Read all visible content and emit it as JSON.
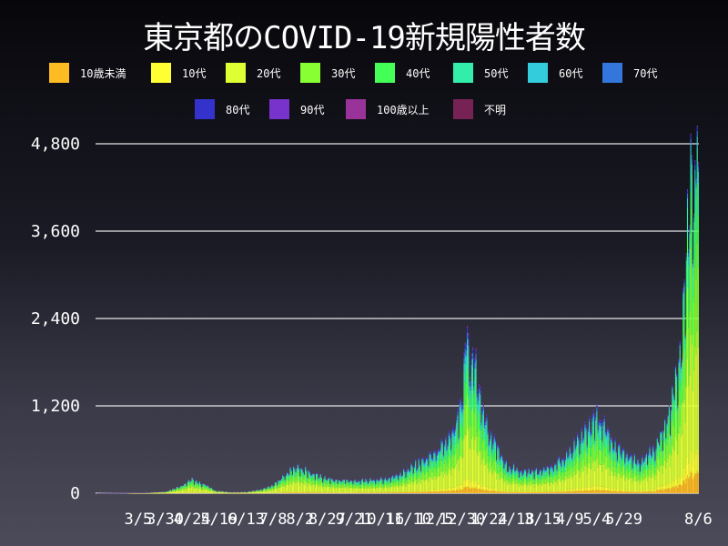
{
  "chart_data": {
    "type": "bar",
    "stacked": true,
    "title": "東京都のCOVID-19新規陽性者数",
    "xlabel": "",
    "ylabel": "",
    "ylim": [
      0,
      4900
    ],
    "grid": true,
    "legend_position": "top",
    "y_ticks": [
      "0",
      "1,200",
      "2,400",
      "3,600",
      "4,800"
    ],
    "y_tick_values": [
      0,
      1200,
      2400,
      3600,
      4800
    ],
    "x_tick_labels": [
      {
        "label": "3/5",
        "index": 39
      },
      {
        "label": "3/30",
        "index": 64
      },
      {
        "label": "4/24",
        "index": 89
      },
      {
        "label": "5/19",
        "index": 114
      },
      {
        "label": "6/13",
        "index": 139
      },
      {
        "label": "7/8",
        "index": 164
      },
      {
        "label": "8/2",
        "index": 189
      },
      {
        "label": "8/27",
        "index": 214
      },
      {
        "label": "9/21",
        "index": 239
      },
      {
        "label": "10/16",
        "index": 264
      },
      {
        "label": "11/10",
        "index": 289
      },
      {
        "label": "12/5",
        "index": 314
      },
      {
        "label": "12/30",
        "index": 339
      },
      {
        "label": "1/24",
        "index": 364
      },
      {
        "label": "2/18",
        "index": 389
      },
      {
        "label": "3/15",
        "index": 414
      },
      {
        "label": "4/9",
        "index": 439
      },
      {
        "label": "5/4",
        "index": 464
      },
      {
        "label": "5/29",
        "index": 489
      },
      {
        "label": "8/6",
        "index": 558
      }
    ],
    "n_days": 559,
    "series": [
      {
        "name": "10歳未満",
        "color": "#ffbb22"
      },
      {
        "name": "10代",
        "color": "#ffff33"
      },
      {
        "name": "20代",
        "color": "#ddff33"
      },
      {
        "name": "30代",
        "color": "#88ff33"
      },
      {
        "name": "40代",
        "color": "#44ff55"
      },
      {
        "name": "50代",
        "color": "#33eeaa"
      },
      {
        "name": "60代",
        "color": "#33ccdd"
      },
      {
        "name": "70代",
        "color": "#3377dd"
      },
      {
        "name": "80代",
        "color": "#3333cc"
      },
      {
        "name": "90代",
        "color": "#7733cc"
      },
      {
        "name": "100歳以上",
        "color": "#993399"
      },
      {
        "name": "不明",
        "color": "#772255"
      }
    ],
    "age_share": [
      [
        0.03,
        0.04,
        0.36,
        0.22,
        0.15,
        0.1,
        0.05,
        0.02,
        0.015,
        0.01,
        0.001,
        0.004
      ],
      [
        0.04,
        0.05,
        0.3,
        0.2,
        0.15,
        0.12,
        0.06,
        0.04,
        0.025,
        0.012,
        0.001,
        0.002
      ],
      [
        0.06,
        0.06,
        0.32,
        0.24,
        0.16,
        0.1,
        0.03,
        0.015,
        0.01,
        0.004,
        0.0005,
        0.0005
      ]
    ],
    "daily_total_keypoints": [
      [
        0,
        0
      ],
      [
        30,
        3
      ],
      [
        50,
        10
      ],
      [
        65,
        25
      ],
      [
        80,
        110
      ],
      [
        88,
        190
      ],
      [
        95,
        140
      ],
      [
        102,
        120
      ],
      [
        110,
        40
      ],
      [
        125,
        15
      ],
      [
        140,
        20
      ],
      [
        155,
        60
      ],
      [
        165,
        120
      ],
      [
        175,
        240
      ],
      [
        185,
        360
      ],
      [
        190,
        330
      ],
      [
        200,
        270
      ],
      [
        210,
        210
      ],
      [
        220,
        180
      ],
      [
        240,
        170
      ],
      [
        255,
        180
      ],
      [
        270,
        200
      ],
      [
        285,
        290
      ],
      [
        300,
        420
      ],
      [
        315,
        560
      ],
      [
        330,
        780
      ],
      [
        340,
        1250
      ],
      [
        343,
        2450
      ],
      [
        346,
        1700
      ],
      [
        350,
        1900
      ],
      [
        355,
        1350
      ],
      [
        365,
        800
      ],
      [
        380,
        380
      ],
      [
        395,
        300
      ],
      [
        410,
        300
      ],
      [
        425,
        380
      ],
      [
        440,
        580
      ],
      [
        452,
        820
      ],
      [
        460,
        1000
      ],
      [
        466,
        1010
      ],
      [
        472,
        880
      ],
      [
        480,
        650
      ],
      [
        495,
        480
      ],
      [
        505,
        420
      ],
      [
        515,
        580
      ],
      [
        525,
        800
      ],
      [
        530,
        1000
      ],
      [
        535,
        1350
      ],
      [
        540,
        1800
      ],
      [
        543,
        2200
      ],
      [
        546,
        2900
      ],
      [
        549,
        3800
      ],
      [
        552,
        4100
      ],
      [
        555,
        4000
      ],
      [
        557,
        5050
      ],
      [
        558,
        4550
      ]
    ]
  }
}
